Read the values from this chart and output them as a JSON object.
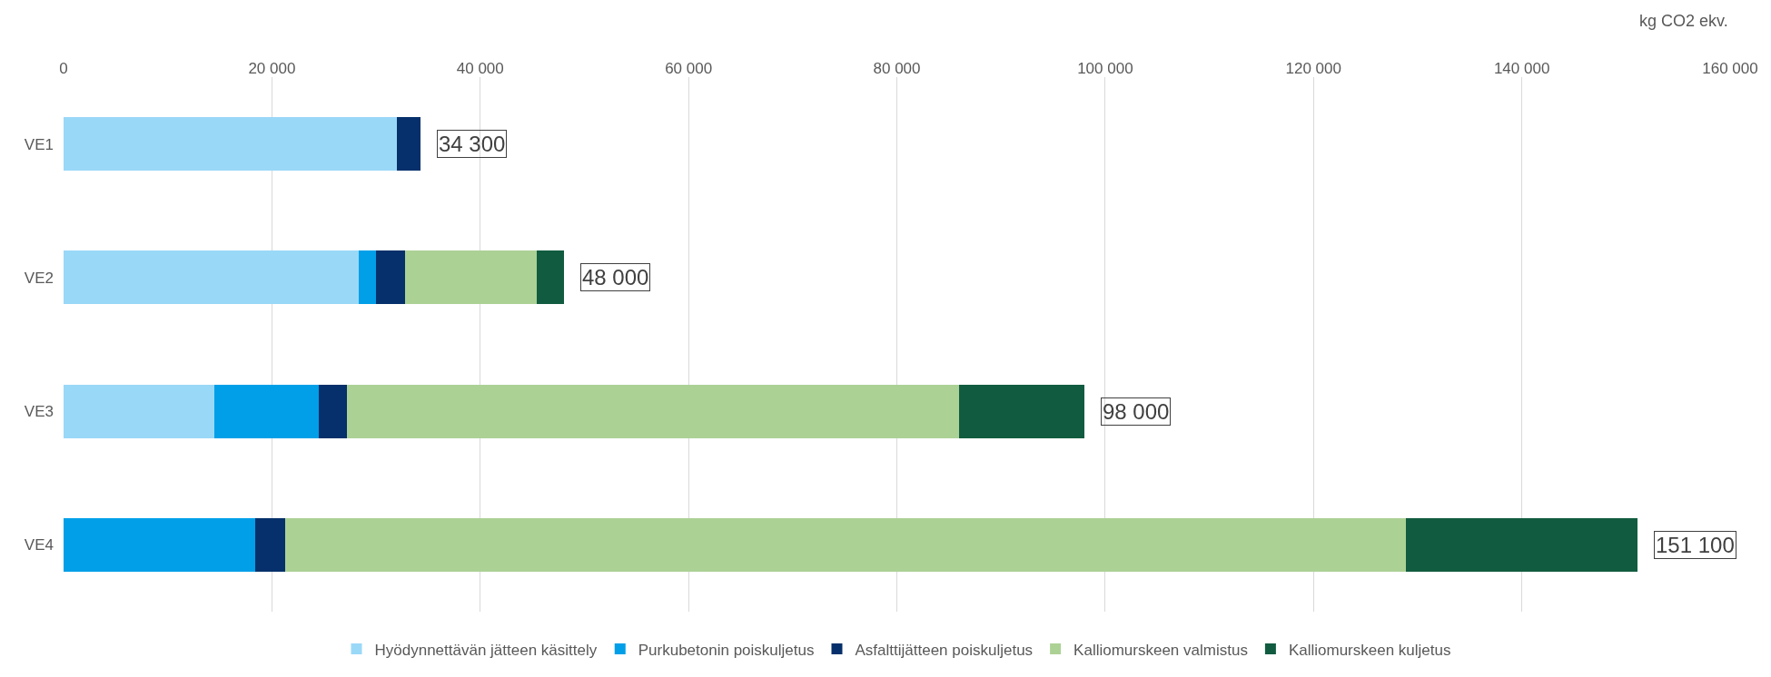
{
  "chart_data": {
    "type": "bar",
    "orientation": "horizontal",
    "stacked": true,
    "xlabel": "kg CO2 ekv.",
    "categories": [
      "VE1",
      "VE2",
      "VE3",
      "VE4"
    ],
    "series": [
      {
        "name": "Hyödynnettävän jätteen käsittely",
        "color": "#9ad8f8",
        "values": [
          32000,
          28300,
          14500,
          0
        ]
      },
      {
        "name": "Purkubetonin poiskuljetus",
        "color": "#009fe8",
        "values": [
          0,
          1700,
          10000,
          18400
        ]
      },
      {
        "name": "Asfalttijätteen poiskuljetus",
        "color": "#05306b",
        "values": [
          2300,
          2800,
          2700,
          2900
        ]
      },
      {
        "name": "Kalliomurskeen valmistus",
        "color": "#acd195",
        "values": [
          0,
          12600,
          58800,
          107600
        ]
      },
      {
        "name": "Kalliomurskeen kuljetus",
        "color": "#115c40",
        "values": [
          0,
          2600,
          12000,
          22200
        ]
      }
    ],
    "totals": [
      "34 300",
      "48 000",
      "98 000",
      "151 100"
    ],
    "xlim": [
      0,
      160000
    ],
    "xticks": [
      {
        "value": 0,
        "label": "0"
      },
      {
        "value": 20000,
        "label": "20 000"
      },
      {
        "value": 40000,
        "label": "40 000"
      },
      {
        "value": 60000,
        "label": "60 000"
      },
      {
        "value": 80000,
        "label": "80 000"
      },
      {
        "value": 100000,
        "label": "100 000"
      },
      {
        "value": 120000,
        "label": "120 000"
      },
      {
        "value": 140000,
        "label": "140 000"
      },
      {
        "value": 160000,
        "label": "160 000"
      }
    ],
    "grid": "x",
    "legend": "bottom"
  }
}
